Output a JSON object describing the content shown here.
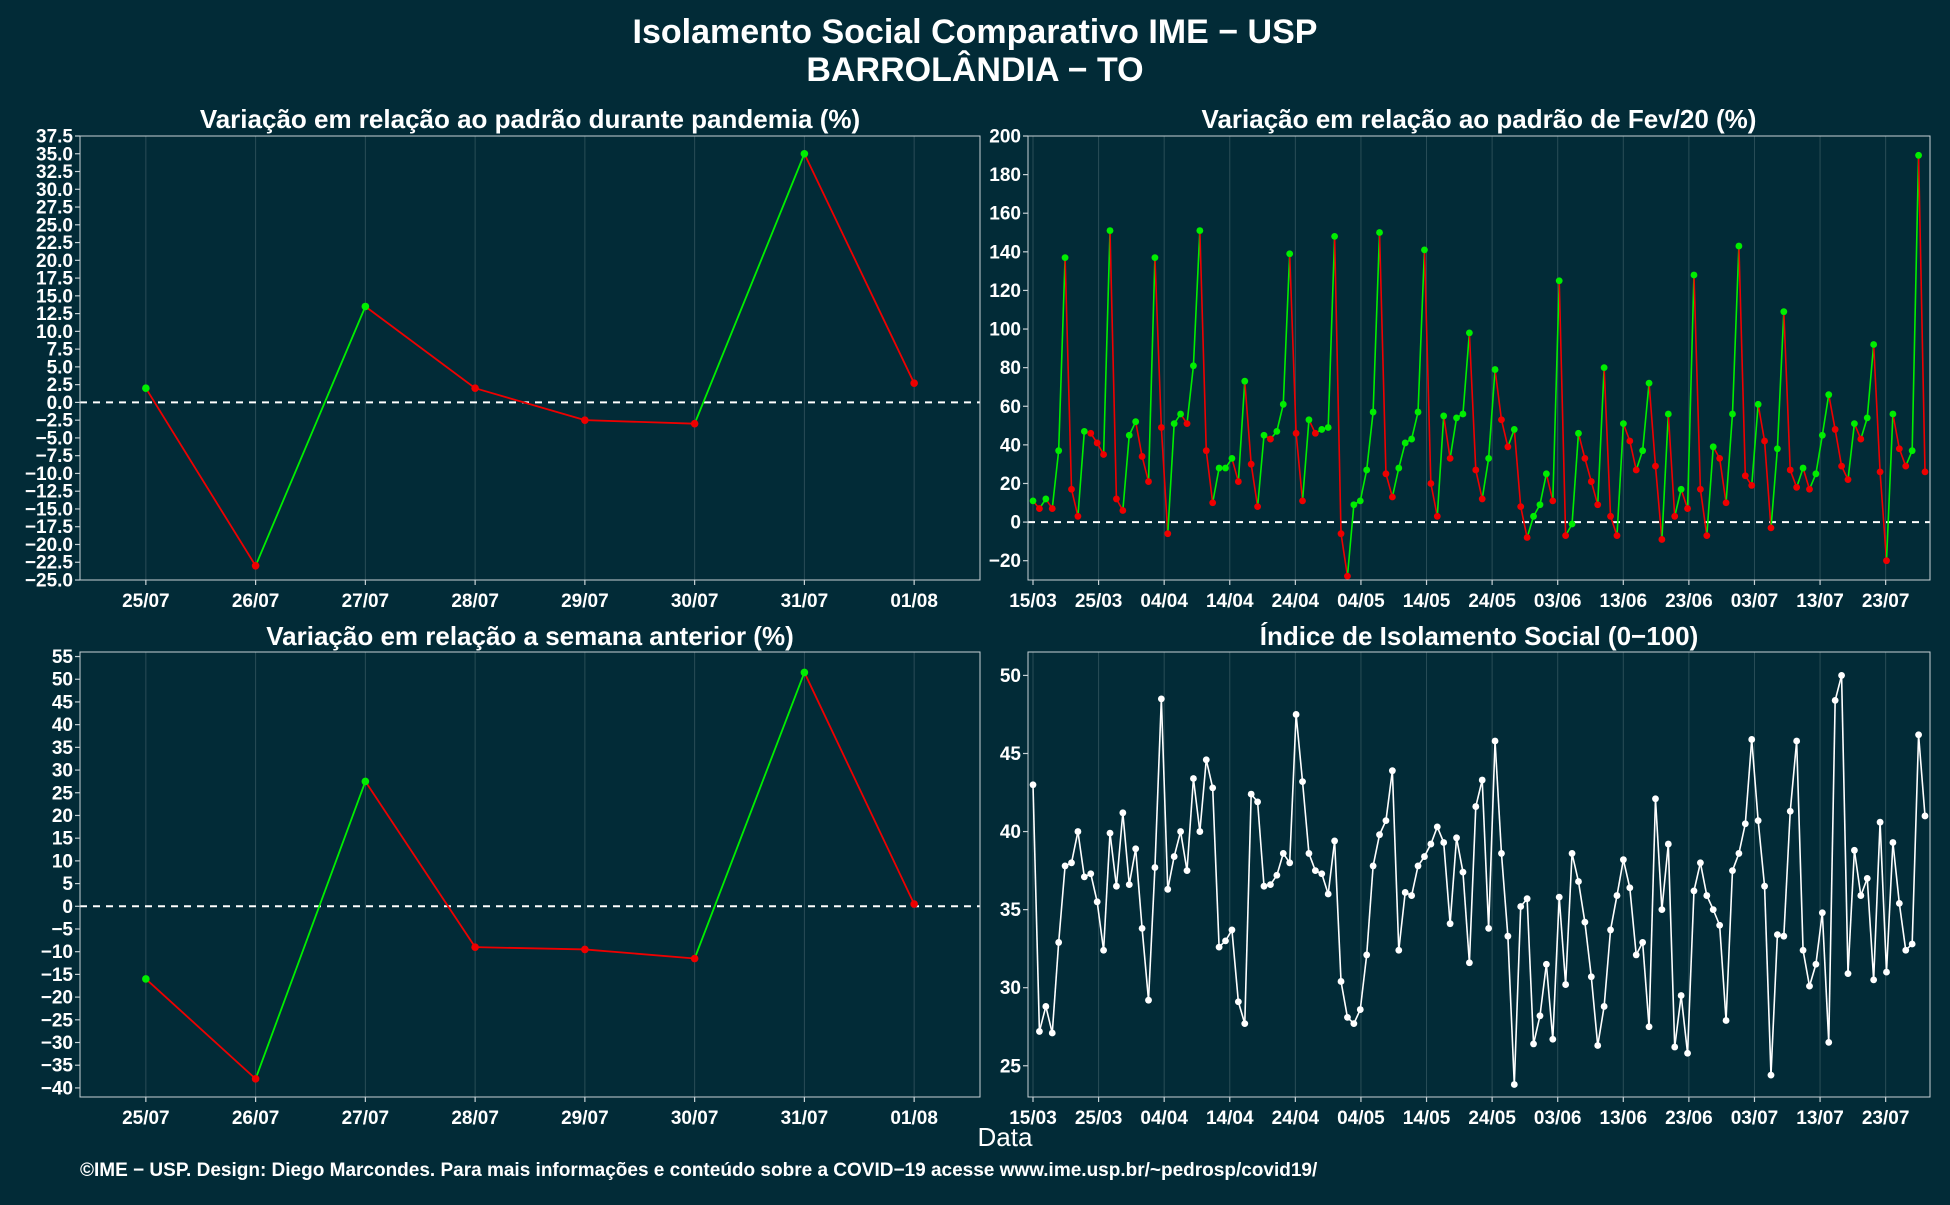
{
  "header": {
    "title": "Isolamento Social Comparativo IME − USP",
    "subtitle": "BARROLÂNDIA − TO"
  },
  "footer": {
    "xlabel": "Data",
    "caption": "©IME − USP. Design: Diego Marcondes. Para mais informações e conteúdo sobre a COVID−19 acesse www.ime.usp.br/~pedrosp/covid19/"
  },
  "colors": {
    "background": "#022b37",
    "increase": "#00ee00",
    "decrease": "#ee0000",
    "index_line": "#ffffff",
    "grid": "#2a4d57",
    "axis": "#c8d2d6"
  },
  "chart_data": [
    {
      "type": "line",
      "title": "Variação em relação ao padrão durante pandemia (%)",
      "color_mode": "updown",
      "categories": [
        "25/07",
        "26/07",
        "27/07",
        "28/07",
        "29/07",
        "30/07",
        "31/07",
        "01/08"
      ],
      "values": [
        2.0,
        -23.0,
        13.5,
        2.0,
        -2.5,
        -3.0,
        35.0,
        2.7
      ],
      "ylim": [
        -25,
        37.5
      ],
      "yticks": [
        37.5,
        35.0,
        32.5,
        30.0,
        27.5,
        25.0,
        22.5,
        20.0,
        17.5,
        15.0,
        12.5,
        10.0,
        7.5,
        5.0,
        2.5,
        0.0,
        -2.5,
        -5.0,
        -7.5,
        -10.0,
        -12.5,
        -15.0,
        -17.5,
        -20.0,
        -22.5,
        -25.0
      ],
      "ytick_labels": [
        "37.5",
        "35.0",
        "32.5",
        "30.0",
        "27.5",
        "25.0",
        "22.5",
        "20.0",
        "17.5",
        "15.0",
        "12.5",
        "10.0",
        "7.5",
        "5.0",
        "2.5",
        "0.0",
        "−2.5",
        "−5.0",
        "−7.5",
        "−10.0",
        "−12.5",
        "−15.0",
        "−17.5",
        "−20.0",
        "−22.5",
        "−25.0"
      ],
      "reference_line": 0,
      "grid": true
    },
    {
      "type": "line",
      "title": "Variação em relação ao padrão de Fev/20 (%)",
      "color_mode": "updown",
      "x_start": "15/03",
      "x_end": "29/07",
      "xtick_labels": [
        "15/03",
        "25/03",
        "04/04",
        "14/04",
        "24/04",
        "04/05",
        "14/05",
        "24/05",
        "03/06",
        "13/06",
        "23/06",
        "03/07",
        "13/07",
        "23/07"
      ],
      "values": [
        11,
        7,
        12,
        7,
        37,
        137,
        17,
        3,
        47,
        46,
        41,
        35,
        151,
        12,
        6,
        45,
        52,
        34,
        21,
        137,
        49,
        -6,
        51,
        56,
        51,
        81,
        151,
        37,
        10,
        28,
        28,
        33,
        21,
        73,
        30,
        8,
        45,
        43,
        47,
        61,
        139,
        46,
        11,
        53,
        46,
        48,
        49,
        148,
        -6,
        -28,
        9,
        11,
        27,
        57,
        150,
        25,
        13,
        28,
        41,
        43,
        57,
        141,
        20,
        3,
        55,
        33,
        54,
        56,
        98,
        27,
        12,
        33,
        79,
        53,
        39,
        48,
        8,
        -8,
        3,
        9,
        25,
        11,
        125,
        -7,
        -1,
        46,
        33,
        21,
        9,
        80,
        3,
        -7,
        51,
        42,
        27,
        37,
        72,
        29,
        -9,
        56,
        3,
        17,
        7,
        128,
        17,
        -7,
        39,
        33,
        10,
        56,
        143,
        24,
        19,
        61,
        42,
        -3,
        38,
        109,
        27,
        18,
        28,
        17,
        25,
        45,
        66,
        48,
        29,
        22,
        51,
        43,
        54,
        92,
        26,
        -20,
        56,
        38,
        29,
        37,
        190,
        26
      ],
      "ylim": [
        -30,
        200
      ],
      "yticks": [
        200,
        180,
        160,
        140,
        120,
        100,
        80,
        60,
        40,
        20,
        0,
        -20
      ],
      "ytick_labels": [
        "200",
        "180",
        "160",
        "140",
        "120",
        "100",
        "80",
        "60",
        "40",
        "20",
        "0",
        "−20"
      ],
      "reference_line": 0,
      "grid": true
    },
    {
      "type": "line",
      "title": "Variação em relação a semana anterior (%)",
      "color_mode": "updown",
      "categories": [
        "25/07",
        "26/07",
        "27/07",
        "28/07",
        "29/07",
        "30/07",
        "31/07",
        "01/08"
      ],
      "values": [
        -16,
        -38,
        27.5,
        -9,
        -9.5,
        -11.5,
        51.5,
        0.5
      ],
      "ylim": [
        -42,
        56
      ],
      "yticks": [
        55,
        50,
        45,
        40,
        35,
        30,
        25,
        20,
        15,
        10,
        5,
        0,
        -5,
        -10,
        -15,
        -20,
        -25,
        -30,
        -35,
        -40
      ],
      "ytick_labels": [
        "55",
        "50",
        "45",
        "40",
        "35",
        "30",
        "25",
        "20",
        "15",
        "10",
        "5",
        "0",
        "−5",
        "−10",
        "−15",
        "−20",
        "−25",
        "−30",
        "−35",
        "−40"
      ],
      "reference_line": 0,
      "grid": true
    },
    {
      "type": "line",
      "title": "Índice de Isolamento Social (0−100)",
      "color_mode": "single",
      "x_start": "15/03",
      "x_end": "29/07",
      "xtick_labels": [
        "15/03",
        "25/03",
        "04/04",
        "14/04",
        "24/04",
        "04/05",
        "14/05",
        "24/05",
        "03/06",
        "13/06",
        "23/06",
        "03/07",
        "13/07",
        "23/07"
      ],
      "values": [
        43.0,
        27.2,
        28.8,
        27.1,
        32.9,
        37.8,
        38.0,
        40.0,
        37.1,
        37.3,
        35.5,
        32.4,
        39.9,
        36.5,
        41.2,
        36.6,
        38.9,
        33.8,
        29.2,
        37.7,
        48.5,
        36.3,
        38.4,
        40.0,
        37.5,
        43.4,
        40.0,
        44.6,
        42.8,
        32.6,
        33.0,
        33.7,
        29.1,
        27.7,
        42.4,
        41.9,
        36.5,
        36.6,
        37.2,
        38.6,
        38.0,
        47.5,
        43.2,
        38.6,
        37.5,
        37.3,
        36.0,
        39.4,
        30.4,
        28.1,
        27.7,
        28.6,
        32.1,
        37.8,
        39.8,
        40.7,
        43.9,
        32.4,
        36.1,
        35.9,
        37.8,
        38.4,
        39.2,
        40.3,
        39.3,
        34.1,
        39.6,
        37.4,
        31.6,
        41.6,
        43.3,
        33.8,
        45.8,
        38.6,
        33.3,
        23.8,
        35.2,
        35.7,
        26.4,
        28.2,
        31.5,
        26.7,
        35.8,
        30.2,
        38.6,
        36.8,
        34.2,
        30.7,
        26.3,
        28.8,
        33.7,
        35.9,
        38.2,
        36.4,
        32.1,
        32.9,
        27.5,
        42.1,
        35.0,
        39.2,
        26.2,
        29.5,
        25.8,
        36.2,
        38.0,
        35.9,
        35.0,
        34.0,
        27.9,
        37.5,
        38.6,
        40.5,
        45.9,
        40.7,
        36.5,
        24.4,
        33.4,
        33.3,
        41.3,
        45.8,
        32.4,
        30.1,
        31.5,
        34.8,
        26.5,
        48.4,
        50.0,
        30.9,
        38.8,
        35.9,
        37.0,
        30.5,
        40.6,
        31.0,
        39.3,
        35.4,
        32.4,
        32.8,
        46.2,
        41.0
      ],
      "ylim": [
        23,
        51.5
      ],
      "yticks": [
        50,
        45,
        40,
        35,
        30,
        25
      ],
      "ytick_labels": [
        "50",
        "45",
        "40",
        "35",
        "30",
        "25"
      ],
      "grid": true
    }
  ]
}
